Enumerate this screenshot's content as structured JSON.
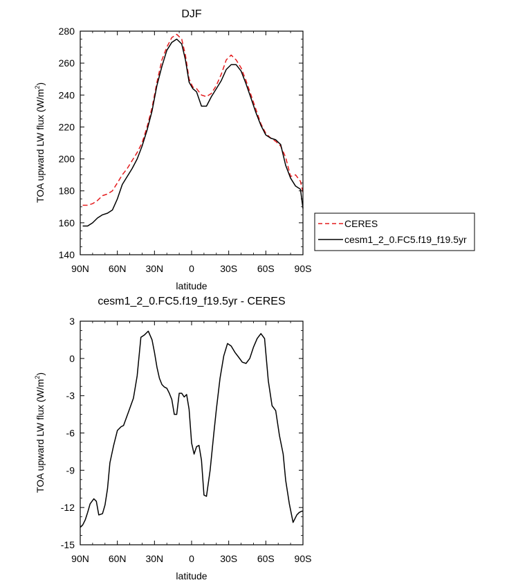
{
  "chart_data": [
    {
      "type": "line",
      "title": "DJF",
      "xlabel": "latitude",
      "ylabel": "TOA upward LW flux (W/m",
      "ylabel_sup": "2",
      "ylabel_end": ")",
      "xlim": [
        90,
        -90
      ],
      "ylim": [
        140,
        280
      ],
      "x_ticks": [
        {
          "value": 90,
          "label": "90N"
        },
        {
          "value": 60,
          "label": "60N"
        },
        {
          "value": 30,
          "label": "30N"
        },
        {
          "value": 0,
          "label": "0"
        },
        {
          "value": -30,
          "label": "30S"
        },
        {
          "value": -60,
          "label": "60S"
        },
        {
          "value": -90,
          "label": "90S"
        }
      ],
      "y_ticks": [
        140,
        160,
        180,
        200,
        220,
        240,
        260,
        280
      ],
      "legend_placement": "right",
      "series": [
        {
          "name": "CERES",
          "color": "#e41a1c",
          "dash": "dashed",
          "x": [
            88,
            84,
            80,
            76,
            72,
            68,
            64,
            60,
            56,
            52,
            48,
            44,
            40,
            36,
            32,
            28,
            24,
            20,
            16,
            12,
            8,
            5,
            2,
            -1,
            -4,
            -8,
            -12,
            -16,
            -20,
            -24,
            -28,
            -32,
            -36,
            -40,
            -44,
            -48,
            -52,
            -56,
            -60,
            -64,
            -68,
            -72,
            -76,
            -80,
            -84,
            -88,
            -90
          ],
          "y": [
            171,
            171,
            172,
            174,
            177,
            178,
            180,
            185,
            190,
            194,
            199,
            204,
            210,
            220,
            232,
            248,
            262,
            270,
            276,
            278,
            275,
            265,
            250,
            245,
            244,
            240,
            239,
            241,
            246,
            253,
            262,
            265,
            262,
            257,
            249,
            240,
            231,
            222,
            216,
            213,
            211,
            208,
            201,
            189,
            190,
            186,
            179
          ]
        },
        {
          "name": "cesm1_2_0.FC5.f19_f19.5yr",
          "color": "#000000",
          "dash": "solid",
          "x": [
            88,
            84,
            80,
            76,
            72,
            68,
            64,
            60,
            56,
            52,
            48,
            44,
            40,
            36,
            32,
            28,
            24,
            20,
            16,
            12,
            8,
            5,
            2,
            -1,
            -4,
            -8,
            -12,
            -16,
            -20,
            -24,
            -28,
            -32,
            -36,
            -40,
            -44,
            -48,
            -52,
            -56,
            -60,
            -64,
            -68,
            -72,
            -76,
            -80,
            -84,
            -88,
            -90
          ],
          "y": [
            158,
            158,
            160,
            163,
            165,
            166,
            168,
            175,
            184,
            189,
            194,
            200,
            208,
            218,
            230,
            246,
            258,
            268,
            273,
            275,
            272,
            262,
            248,
            244,
            242,
            233,
            233,
            239,
            244,
            249,
            256,
            259,
            259,
            255,
            247,
            238,
            229,
            221,
            215,
            213,
            212,
            209,
            196,
            188,
            183,
            181,
            169
          ]
        }
      ]
    },
    {
      "type": "line",
      "title": "cesm1_2_0.FC5.f19_f19.5yr - CERES",
      "xlabel": "latitude",
      "ylabel": "TOA upward LW flux (W/m",
      "ylabel_sup": "2",
      "ylabel_end": ")",
      "xlim": [
        90,
        -90
      ],
      "ylim": [
        -15,
        3
      ],
      "x_ticks": [
        {
          "value": 90,
          "label": "90N"
        },
        {
          "value": 60,
          "label": "60N"
        },
        {
          "value": 30,
          "label": "30N"
        },
        {
          "value": 0,
          "label": "0"
        },
        {
          "value": -30,
          "label": "30S"
        },
        {
          "value": -60,
          "label": "60S"
        },
        {
          "value": -90,
          "label": "90S"
        }
      ],
      "y_ticks": [
        -15,
        -12,
        -9,
        -6,
        -3,
        0,
        3
      ],
      "series": [
        {
          "color": "#000000",
          "dash": "solid",
          "x": [
            90,
            88,
            86,
            84,
            82,
            79,
            77,
            75,
            72,
            70,
            68,
            66,
            63,
            60,
            57,
            55,
            51,
            47,
            44,
            41,
            38,
            35,
            32,
            30,
            28,
            26,
            24,
            22,
            20,
            18,
            16,
            14,
            12,
            10,
            8,
            6,
            4,
            2,
            0,
            -2,
            -4,
            -6,
            -8,
            -10,
            -12,
            -15,
            -18,
            -20,
            -23,
            -26,
            -29,
            -32,
            -35,
            -38,
            -41,
            -44,
            -47,
            -50,
            -53,
            -56,
            -59,
            -62,
            -65,
            -68,
            -71,
            -74,
            -76,
            -79,
            -82,
            -85,
            -87,
            -89,
            -90
          ],
          "y": [
            -13.6,
            -13.4,
            -13.0,
            -12.4,
            -11.7,
            -11.3,
            -11.5,
            -12.6,
            -12.5,
            -11.8,
            -10.5,
            -8.4,
            -7.0,
            -5.8,
            -5.5,
            -5.4,
            -4.3,
            -3.2,
            -1.4,
            1.7,
            1.9,
            2.2,
            1.5,
            0.5,
            -0.7,
            -1.6,
            -2.1,
            -2.3,
            -2.4,
            -2.8,
            -3.3,
            -4.5,
            -4.5,
            -2.8,
            -2.8,
            -3.1,
            -2.9,
            -4.1,
            -6.8,
            -7.7,
            -7.1,
            -7.0,
            -8.2,
            -11.0,
            -11.1,
            -9.0,
            -6.0,
            -4.1,
            -1.6,
            0.2,
            1.2,
            1.0,
            0.5,
            0.1,
            -0.3,
            -0.4,
            0.0,
            0.9,
            1.6,
            2.0,
            1.6,
            -1.8,
            -3.8,
            -4.2,
            -6.2,
            -7.7,
            -9.8,
            -11.7,
            -13.2,
            -12.6,
            -12.4,
            -12.3,
            -12.3
          ]
        }
      ]
    }
  ]
}
